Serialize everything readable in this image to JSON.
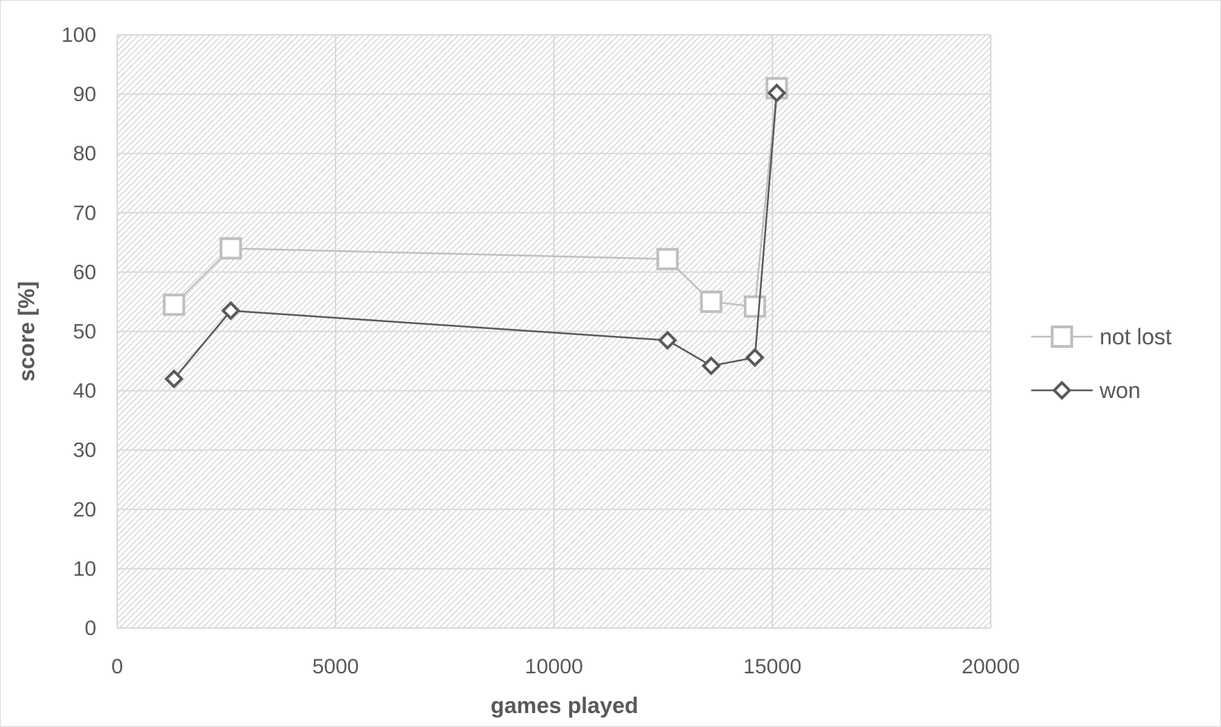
{
  "chart_data": {
    "type": "scatter",
    "title": "",
    "xlabel": "games played",
    "ylabel": "score [%]",
    "xlim": [
      0,
      20000
    ],
    "ylim": [
      0,
      100
    ],
    "xticks": [
      0,
      5000,
      10000,
      15000,
      20000
    ],
    "yticks": [
      0,
      10,
      20,
      30,
      40,
      50,
      60,
      70,
      80,
      90,
      100
    ],
    "grid": true,
    "legend_position": "right",
    "series": [
      {
        "name": "not lost",
        "marker": "square",
        "color": "#bfbfbf",
        "x": [
          1300,
          2600,
          12600,
          13600,
          14600,
          15100
        ],
        "y": [
          54.5,
          64,
          62.2,
          55,
          54.2,
          91
        ]
      },
      {
        "name": "won",
        "marker": "diamond",
        "color": "#595959",
        "x": [
          1300,
          2600,
          12600,
          13600,
          14600,
          15100
        ],
        "y": [
          42,
          53.5,
          48.5,
          44.2,
          45.6,
          90.2
        ]
      }
    ]
  }
}
